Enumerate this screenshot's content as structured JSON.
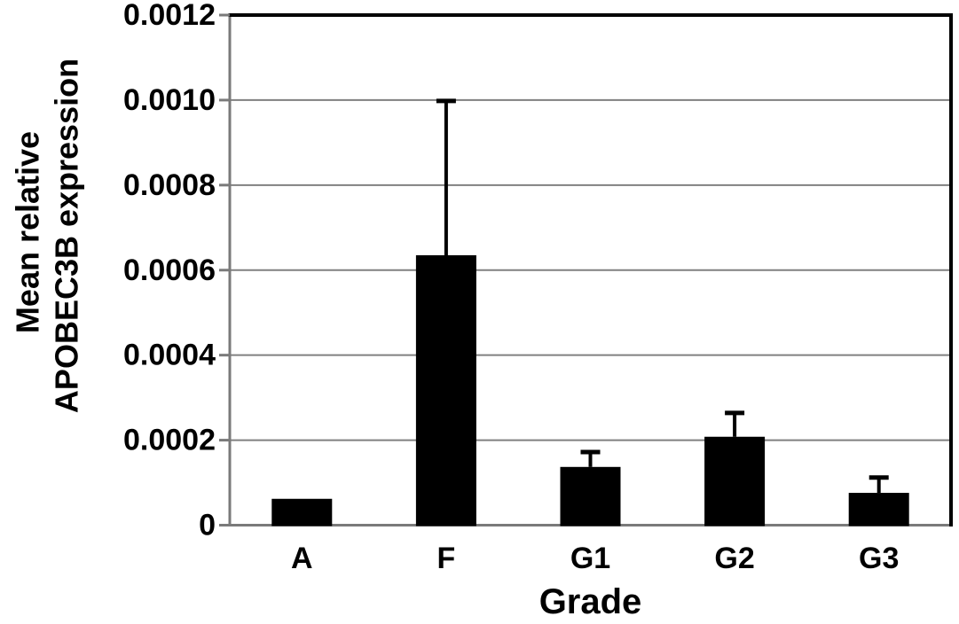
{
  "figure": {
    "background": "#ffffff"
  },
  "chart_data": {
    "type": "bar",
    "title": "",
    "xlabel": "Grade",
    "ylabel_lines": [
      "Mean relative",
      "APOBEC3B  expression"
    ],
    "categories": [
      "A",
      "F",
      "G1",
      "G2",
      "G3"
    ],
    "values": [
      6.2e-05,
      0.000635,
      0.000137,
      0.000208,
      7.6e-05
    ],
    "errors_plus": [
      0,
      0.000363,
      3.5e-05,
      5.6e-05,
      3.6e-05
    ],
    "ylim": [
      0,
      0.0012
    ],
    "ytick_values": [
      0,
      0.0002,
      0.0004,
      0.0006,
      0.0008,
      0.001,
      0.0012
    ],
    "ytick_labels": [
      "0",
      "0.0002",
      "0.0004",
      "0.0006",
      "0.0008",
      "0.0010",
      "0.0012"
    ],
    "grid": true,
    "legend": null,
    "bar_fill_fraction": 0.42,
    "colors": {
      "bar": "#000000",
      "grid": "#808080",
      "axis": "#7a7a7a",
      "frame": "#000000",
      "error": "#000000",
      "text": "#000000",
      "background": "#ffffff"
    }
  }
}
